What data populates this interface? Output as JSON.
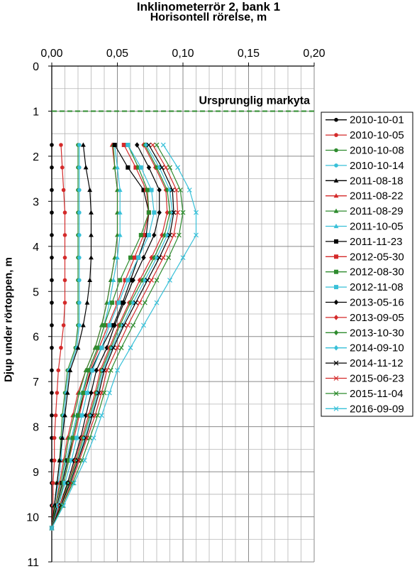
{
  "chart_data": {
    "type": "line",
    "title": "Inklinometerrör 2, bank 1",
    "subtitle": "Horisontell rörelse, m",
    "xlabel": "Horisontell rörelse, m",
    "ylabel": "Djup under rörtoppen, m",
    "xlim": [
      0,
      0.2
    ],
    "ylim": [
      0,
      11
    ],
    "y_inverted": true,
    "x_ticks": [
      "0,00",
      "0,05",
      "0,10",
      "0,15",
      "0,20"
    ],
    "y_ticks": [
      "0",
      "1",
      "2",
      "3",
      "4",
      "5",
      "6",
      "7",
      "8",
      "9",
      "10",
      "11"
    ],
    "grid": true,
    "legend_position": "right",
    "annotation": {
      "text": "Ursprunglig markyta",
      "depth": 1.0,
      "line_color": "#2e8b2e",
      "line_style": "dashed"
    },
    "depths": [
      1.75,
      2.25,
      2.75,
      3.25,
      3.75,
      4.25,
      4.75,
      5.25,
      5.75,
      6.25,
      6.75,
      7.25,
      7.75,
      8.25,
      8.75,
      9.25,
      9.75,
      10.25
    ],
    "series": [
      {
        "name": "2010-10-01",
        "color": "#000000",
        "marker": "circle",
        "values": [
          0.0,
          0.0,
          0.0,
          0.0,
          0.0,
          0.0,
          0.0,
          0.0,
          0.0,
          0.0,
          0.0,
          0.0,
          0.0,
          0.0,
          0.0,
          0.0,
          0.0,
          0.0
        ]
      },
      {
        "name": "2010-10-05",
        "color": "#d42a2a",
        "marker": "circle",
        "values": [
          0.007,
          0.008,
          0.009,
          0.01,
          0.01,
          0.01,
          0.01,
          0.01,
          0.009,
          0.007,
          0.005,
          0.004,
          0.003,
          0.002,
          0.002,
          0.001,
          0.001,
          0.0
        ]
      },
      {
        "name": "2010-10-08",
        "color": "#2e8b2e",
        "marker": "circle",
        "values": [
          0.02,
          0.02,
          0.02,
          0.02,
          0.02,
          0.02,
          0.02,
          0.02,
          0.02,
          0.018,
          0.012,
          0.01,
          0.008,
          0.007,
          0.006,
          0.004,
          0.002,
          0.0
        ]
      },
      {
        "name": "2010-10-14",
        "color": "#38c0d8",
        "marker": "circle",
        "values": [
          0.021,
          0.021,
          0.021,
          0.021,
          0.021,
          0.021,
          0.021,
          0.021,
          0.021,
          0.019,
          0.013,
          0.011,
          0.009,
          0.008,
          0.007,
          0.005,
          0.002,
          0.0
        ]
      },
      {
        "name": "2011-08-18",
        "color": "#000000",
        "marker": "triangle",
        "values": [
          0.024,
          0.026,
          0.029,
          0.03,
          0.03,
          0.03,
          0.029,
          0.027,
          0.024,
          0.02,
          0.014,
          0.012,
          0.01,
          0.008,
          0.006,
          0.004,
          0.002,
          0.0
        ]
      },
      {
        "name": "2011-08-22",
        "color": "#d42a2a",
        "marker": "triangle",
        "values": [
          0.046,
          0.048,
          0.05,
          0.05,
          0.05,
          0.048,
          0.045,
          0.042,
          0.038,
          0.033,
          0.026,
          0.02,
          0.016,
          0.012,
          0.009,
          0.006,
          0.003,
          0.0
        ]
      },
      {
        "name": "2011-08-29",
        "color": "#2e8b2e",
        "marker": "triangle",
        "values": [
          0.047,
          0.048,
          0.05,
          0.05,
          0.05,
          0.048,
          0.045,
          0.042,
          0.038,
          0.033,
          0.026,
          0.021,
          0.017,
          0.013,
          0.01,
          0.007,
          0.003,
          0.0
        ]
      },
      {
        "name": "2011-10-05",
        "color": "#38c0d8",
        "marker": "triangle",
        "values": [
          0.048,
          0.05,
          0.052,
          0.052,
          0.052,
          0.05,
          0.047,
          0.044,
          0.04,
          0.035,
          0.028,
          0.023,
          0.019,
          0.015,
          0.011,
          0.008,
          0.004,
          0.0
        ]
      },
      {
        "name": "2011-11-23",
        "color": "#000000",
        "marker": "square",
        "values": [
          0.048,
          0.058,
          0.07,
          0.074,
          0.072,
          0.066,
          0.06,
          0.054,
          0.047,
          0.038,
          0.03,
          0.025,
          0.02,
          0.016,
          0.012,
          0.008,
          0.004,
          0.0
        ]
      },
      {
        "name": "2012-05-30",
        "color": "#d42a2a",
        "marker": "square",
        "values": [
          0.055,
          0.064,
          0.072,
          0.074,
          0.07,
          0.063,
          0.056,
          0.05,
          0.043,
          0.036,
          0.029,
          0.025,
          0.021,
          0.017,
          0.013,
          0.009,
          0.005,
          0.0
        ]
      },
      {
        "name": "2012-08-30",
        "color": "#2e8b2e",
        "marker": "square",
        "values": [
          0.058,
          0.066,
          0.073,
          0.074,
          0.068,
          0.06,
          0.052,
          0.046,
          0.04,
          0.035,
          0.028,
          0.024,
          0.02,
          0.016,
          0.013,
          0.009,
          0.005,
          0.0
        ]
      },
      {
        "name": "2012-11-08",
        "color": "#38c0d8",
        "marker": "square",
        "values": [
          0.058,
          0.068,
          0.076,
          0.078,
          0.074,
          0.066,
          0.058,
          0.051,
          0.044,
          0.038,
          0.031,
          0.027,
          0.023,
          0.019,
          0.015,
          0.01,
          0.005,
          0.0
        ]
      },
      {
        "name": "2013-05-16",
        "color": "#000000",
        "marker": "diamond",
        "values": [
          0.065,
          0.074,
          0.082,
          0.082,
          0.078,
          0.07,
          0.062,
          0.055,
          0.048,
          0.042,
          0.034,
          0.03,
          0.026,
          0.022,
          0.017,
          0.012,
          0.006,
          0.0
        ]
      },
      {
        "name": "2013-09-05",
        "color": "#d42a2a",
        "marker": "diamond",
        "values": [
          0.07,
          0.079,
          0.087,
          0.088,
          0.084,
          0.076,
          0.067,
          0.059,
          0.051,
          0.044,
          0.037,
          0.033,
          0.028,
          0.023,
          0.018,
          0.013,
          0.006,
          0.0
        ]
      },
      {
        "name": "2013-10-30",
        "color": "#2e8b2e",
        "marker": "diamond",
        "values": [
          0.071,
          0.08,
          0.088,
          0.09,
          0.086,
          0.078,
          0.069,
          0.06,
          0.052,
          0.045,
          0.038,
          0.034,
          0.029,
          0.024,
          0.019,
          0.013,
          0.007,
          0.0
        ]
      },
      {
        "name": "2014-09-10",
        "color": "#38c0d8",
        "marker": "diamond",
        "values": [
          0.072,
          0.082,
          0.09,
          0.092,
          0.088,
          0.08,
          0.071,
          0.062,
          0.054,
          0.046,
          0.039,
          0.035,
          0.03,
          0.025,
          0.02,
          0.014,
          0.007,
          0.0
        ]
      },
      {
        "name": "2014-11-12",
        "color": "#000000",
        "marker": "x",
        "values": [
          0.074,
          0.084,
          0.092,
          0.093,
          0.09,
          0.082,
          0.073,
          0.064,
          0.055,
          0.047,
          0.04,
          0.036,
          0.031,
          0.026,
          0.02,
          0.014,
          0.007,
          0.0
        ]
      },
      {
        "name": "2015-06-23",
        "color": "#d42a2a",
        "marker": "x",
        "values": [
          0.077,
          0.087,
          0.095,
          0.096,
          0.093,
          0.085,
          0.076,
          0.067,
          0.058,
          0.05,
          0.042,
          0.038,
          0.033,
          0.027,
          0.021,
          0.015,
          0.008,
          0.0
        ]
      },
      {
        "name": "2015-11-04",
        "color": "#2e8b2e",
        "marker": "x",
        "values": [
          0.08,
          0.09,
          0.098,
          0.1,
          0.097,
          0.089,
          0.08,
          0.071,
          0.062,
          0.053,
          0.045,
          0.04,
          0.035,
          0.029,
          0.023,
          0.016,
          0.008,
          0.0
        ]
      },
      {
        "name": "2016-09-09",
        "color": "#38c0d8",
        "marker": "x",
        "values": [
          0.085,
          0.096,
          0.105,
          0.11,
          0.11,
          0.1,
          0.09,
          0.08,
          0.07,
          0.06,
          0.05,
          0.044,
          0.038,
          0.032,
          0.025,
          0.017,
          0.009,
          0.0
        ]
      }
    ]
  }
}
